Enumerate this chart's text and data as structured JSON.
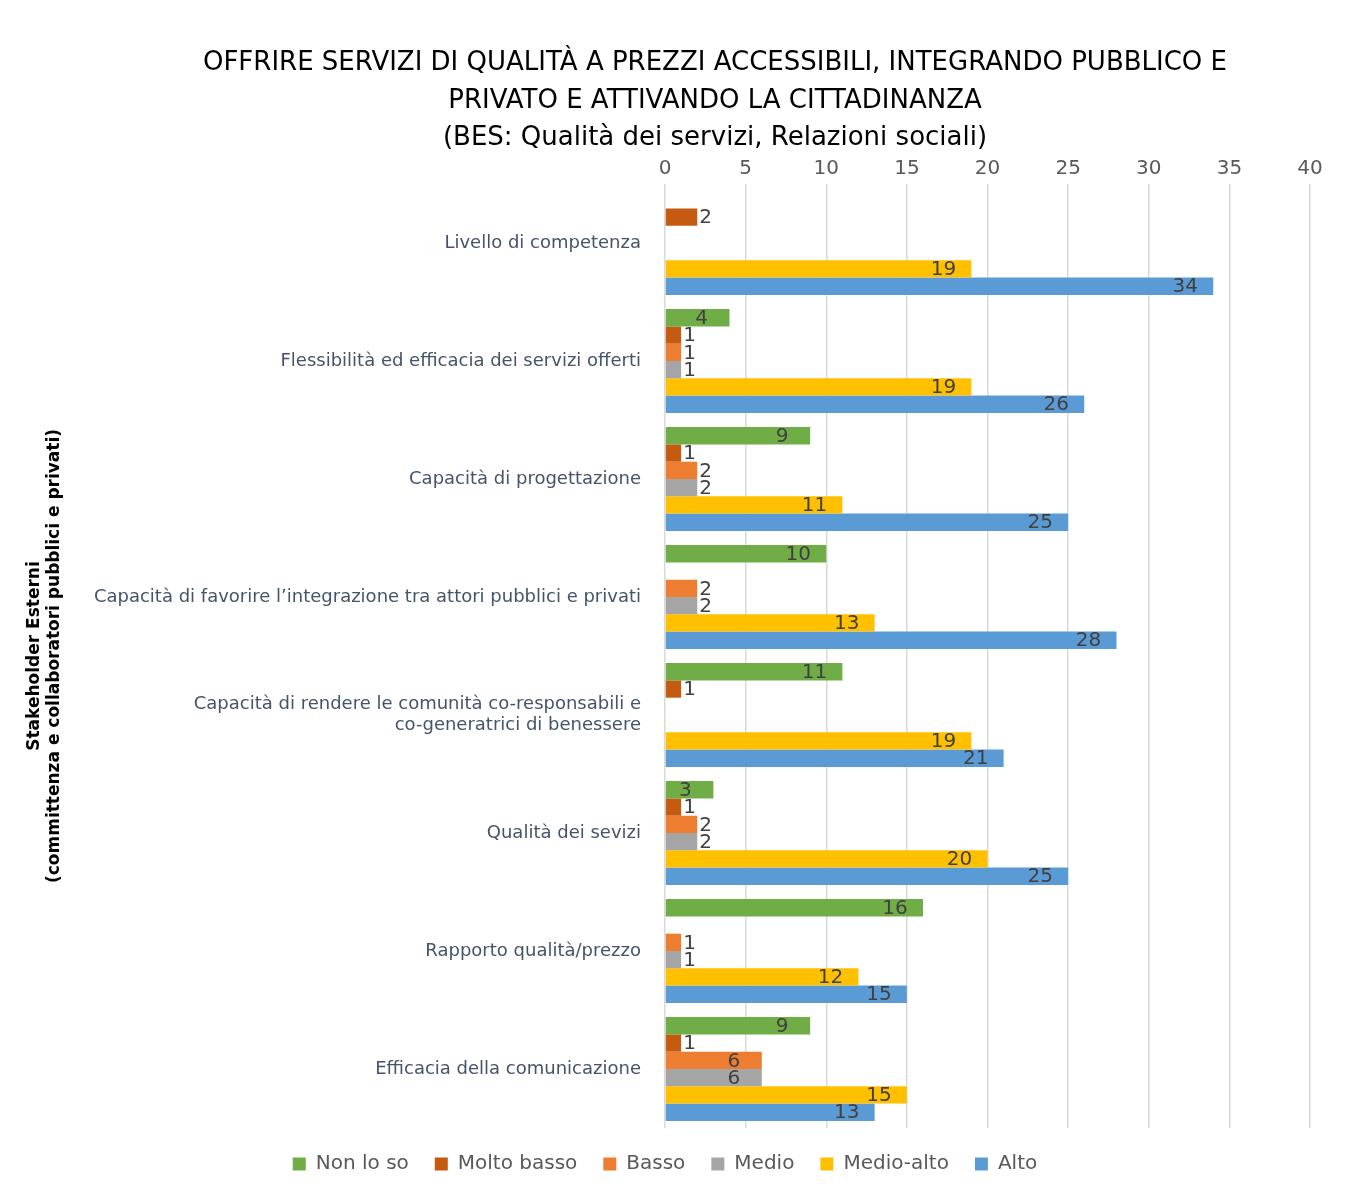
{
  "chart_data": {
    "type": "bar",
    "orientation": "horizontal",
    "title": "OFFRIRE SERVIZI DI QUALITÀ A PREZZI ACCESSIBILI, INTEGRANDO PUBBLICO E PRIVATO E ATTIVANDO LA CITTADINANZA",
    "subtitle": "(BES: Qualità dei servizi, Relazioni sociali)",
    "ylabel": "Stakeholder Esterni\n(committenza e collaboratori pubblici e privati)",
    "categories": [
      "Livello di competenza",
      "Flessibilità ed efficacia dei servizi offerti",
      "Capacità di progettazione",
      "Capacità di favorire l’integrazione tra attori pubblici e privati",
      "Capacità di rendere le comunità co-responsabili e co-generatrici di benessere",
      "Qualità dei sevizi",
      "Rapporto qualità/prezzo",
      "Efficacia della comunicazione"
    ],
    "series": [
      {
        "name": "Non lo so",
        "color": "#70ad47",
        "values": [
          null,
          4,
          9,
          10,
          11,
          3,
          16,
          9
        ]
      },
      {
        "name": "Molto basso",
        "color": "#c55a11",
        "values": [
          2,
          1,
          1,
          null,
          1,
          1,
          null,
          1
        ]
      },
      {
        "name": "Basso",
        "color": "#ed7d31",
        "values": [
          null,
          1,
          2,
          2,
          null,
          2,
          1,
          6
        ]
      },
      {
        "name": "Medio",
        "color": "#a5a5a5",
        "values": [
          null,
          1,
          2,
          2,
          null,
          2,
          1,
          6
        ]
      },
      {
        "name": "Medio-alto",
        "color": "#ffc000",
        "values": [
          19,
          19,
          11,
          13,
          19,
          20,
          12,
          15
        ]
      },
      {
        "name": "Alto",
        "color": "#5b9bd5",
        "values": [
          34,
          26,
          25,
          28,
          21,
          25,
          15,
          13
        ]
      }
    ],
    "xlim": [
      0,
      40
    ],
    "xticks": [
      0,
      5,
      10,
      15,
      20,
      25,
      30,
      35,
      40
    ],
    "grid": "x",
    "legend": "bottom",
    "data_labels": true
  }
}
